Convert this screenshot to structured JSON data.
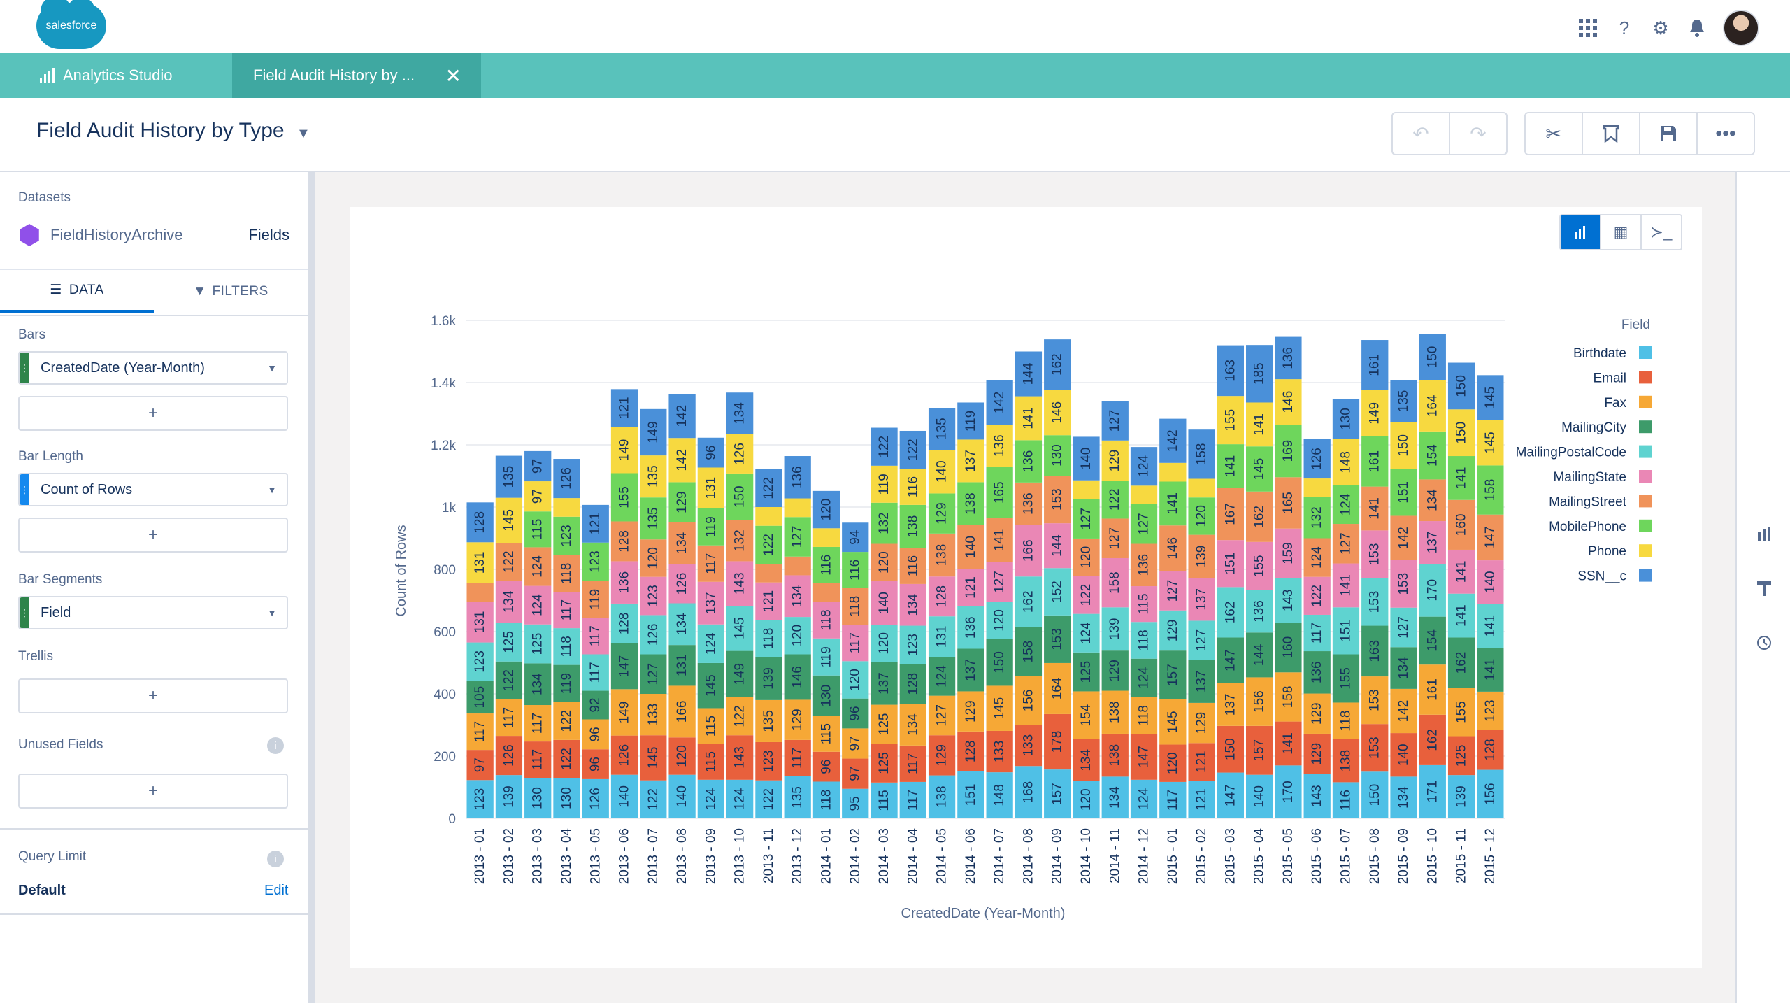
{
  "app": {
    "logo_text": "salesforce"
  },
  "top_icons": [
    "app-launcher-icon",
    "help-icon",
    "setup-gear-icon",
    "notification-bell-icon"
  ],
  "tabs": [
    {
      "label": "Analytics Studio"
    },
    {
      "label": "Field Audit History by ..."
    }
  ],
  "page": {
    "title": "Field Audit History by Type"
  },
  "left": {
    "datasets_label": "Datasets",
    "dataset_name": "FieldHistoryArchive",
    "dataset_fields_link": "Fields",
    "tab_data": "DATA",
    "tab_filters": "FILTERS",
    "bars_label": "Bars",
    "bars_value": "CreatedDate (Year-Month)",
    "bar_length_label": "Bar Length",
    "bar_length_value": "Count of Rows",
    "bar_segments_label": "Bar Segments",
    "bar_segments_value": "Field",
    "trellis_label": "Trellis",
    "unused_fields_label": "Unused Fields",
    "query_limit_label": "Query Limit",
    "query_limit_value": "Default",
    "query_limit_edit": "Edit",
    "plus": "+"
  },
  "colors": {
    "Birthdate": "#4fc0e6",
    "Email": "#e8603c",
    "Fax": "#f6a836",
    "MailingCity": "#3d9b6a",
    "MailingPostalCode": "#5fd3d0",
    "MailingState": "#ea87b5",
    "MailingStreet": "#f0935a",
    "MobilePhone": "#6ed65c",
    "Phone": "#f7d940",
    "SSN__c": "#4a90d9",
    "accent": "#0070d2",
    "tabbar": "#59c2bb"
  },
  "chart_data": {
    "type": "bar",
    "stacked": true,
    "xlabel": "CreatedDate (Year-Month)",
    "ylabel": "Count of Rows",
    "legend_title": "Field",
    "ylim": [
      0,
      1600
    ],
    "yticks": [
      0,
      200,
      400,
      600,
      800,
      1000,
      1200,
      1400,
      1600
    ],
    "ytick_labels": [
      "0",
      "200",
      "400",
      "600",
      "800",
      "1k",
      "1.2k",
      "1.4k",
      "1.6k"
    ],
    "categories": [
      "2013 - 01",
      "2013 - 02",
      "2013 - 03",
      "2013 - 04",
      "2013 - 05",
      "2013 - 06",
      "2013 - 07",
      "2013 - 08",
      "2013 - 09",
      "2013 - 10",
      "2013 - 11",
      "2013 - 12",
      "2014 - 01",
      "2014 - 02",
      "2014 - 03",
      "2014 - 04",
      "2014 - 05",
      "2014 - 06",
      "2014 - 07",
      "2014 - 08",
      "2014 - 09",
      "2014 - 10",
      "2014 - 11",
      "2014 - 12",
      "2015 - 01",
      "2015 - 02",
      "2015 - 03",
      "2015 - 04",
      "2015 - 05",
      "2015 - 06",
      "2015 - 07",
      "2015 - 08",
      "2015 - 09",
      "2015 - 10",
      "2015 - 11",
      "2015 - 12"
    ],
    "series": [
      {
        "name": "Birthdate",
        "values": [
          123,
          139,
          130,
          130,
          126,
          140,
          122,
          140,
          124,
          124,
          122,
          135,
          118,
          95,
          115,
          117,
          138,
          151,
          148,
          168,
          157,
          120,
          134,
          124,
          117,
          121,
          147,
          140,
          170,
          143,
          116,
          150,
          134,
          171,
          139,
          156
        ]
      },
      {
        "name": "Email",
        "values": [
          97,
          126,
          117,
          122,
          96,
          126,
          145,
          120,
          115,
          143,
          123,
          117,
          96,
          97,
          125,
          117,
          129,
          128,
          133,
          133,
          178,
          134,
          138,
          147,
          120,
          121,
          150,
          157,
          141,
          129,
          138,
          153,
          140,
          162,
          125,
          128
        ]
      },
      {
        "name": "Fax",
        "values": [
          117,
          117,
          117,
          122,
          96,
          149,
          133,
          166,
          115,
          122,
          135,
          129,
          115,
          97,
          125,
          134,
          127,
          129,
          145,
          156,
          164,
          154,
          138,
          118,
          145,
          129,
          137,
          156,
          158,
          129,
          118,
          153,
          142,
          161,
          155,
          123
        ]
      },
      {
        "name": "MailingCity",
        "values": [
          105,
          122,
          134,
          119,
          92,
          147,
          127,
          131,
          145,
          149,
          139,
          146,
          130,
          96,
          137,
          128,
          124,
          137,
          150,
          158,
          153,
          125,
          129,
          124,
          157,
          137,
          147,
          144,
          160,
          136,
          155,
          163,
          134,
          154,
          162,
          141
        ]
      },
      {
        "name": "MailingPostalCode",
        "values": [
          123,
          125,
          125,
          118,
          117,
          128,
          126,
          134,
          124,
          145,
          118,
          120,
          119,
          120,
          120,
          123,
          131,
          136,
          120,
          162,
          152,
          124,
          139,
          118,
          129,
          127,
          162,
          136,
          143,
          117,
          151,
          153,
          127,
          170,
          141,
          141
        ]
      },
      {
        "name": "MailingState",
        "values": [
          131,
          134,
          124,
          117,
          117,
          136,
          123,
          126,
          137,
          143,
          121,
          134,
          118,
          117,
          140,
          134,
          128,
          121,
          127,
          166,
          144,
          122,
          158,
          115,
          127,
          137,
          151,
          155,
          159,
          122,
          141,
          153,
          153,
          137,
          141,
          140
        ]
      },
      {
        "name": "MailingStreet",
        "values": [
          60,
          122,
          124,
          118,
          119,
          128,
          120,
          134,
          117,
          132,
          60,
          60,
          60,
          118,
          120,
          116,
          138,
          140,
          141,
          136,
          153,
          120,
          127,
          136,
          146,
          139,
          167,
          162,
          165,
          124,
          127,
          141,
          142,
          134,
          160,
          147
        ]
      },
      {
        "name": "MobilePhone",
        "values": [
          0,
          0,
          115,
          123,
          123,
          155,
          135,
          129,
          119,
          150,
          122,
          127,
          116,
          116,
          132,
          138,
          129,
          138,
          165,
          136,
          130,
          127,
          122,
          127,
          141,
          120,
          141,
          145,
          169,
          132,
          124,
          161,
          151,
          154,
          141,
          158
        ]
      },
      {
        "name": "Phone",
        "values": [
          131,
          145,
          97,
          60,
          0,
          149,
          135,
          142,
          131,
          126,
          60,
          60,
          60,
          0,
          119,
          116,
          140,
          137,
          136,
          141,
          146,
          60,
          129,
          60,
          60,
          60,
          155,
          141,
          146,
          60,
          148,
          149,
          150,
          164,
          150,
          145
        ]
      },
      {
        "name": "SSN__c",
        "values": [
          128,
          135,
          97,
          126,
          121,
          121,
          149,
          142,
          96,
          134,
          122,
          136,
          120,
          94,
          122,
          122,
          135,
          119,
          142,
          144,
          162,
          140,
          127,
          124,
          142,
          158,
          163,
          185,
          136,
          126,
          130,
          161,
          135,
          150,
          150,
          145
        ]
      }
    ]
  }
}
